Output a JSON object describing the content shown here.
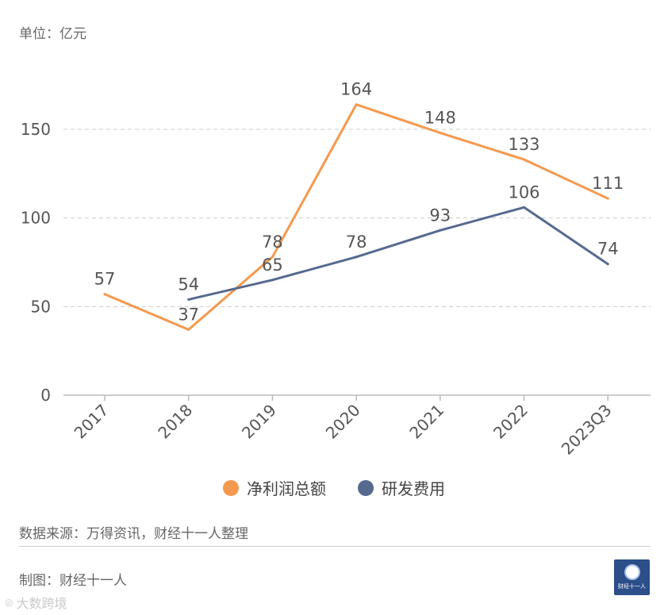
{
  "unit_label": "单位：亿元",
  "source": "数据来源：万得资讯，财经十一人整理",
  "maker": "制图：财经十一人",
  "logo_text": "财经十一人",
  "watermark": "大数跨境",
  "colors": {
    "series1": "#f4994e",
    "series2": "#566a8f",
    "grid": "#cccccc",
    "axis": "#bbbbbb"
  },
  "chart_data": {
    "type": "line",
    "title": "",
    "xlabel": "",
    "ylabel": "单位：亿元",
    "categories": [
      "2017",
      "2018",
      "2019",
      "2020",
      "2021",
      "2022",
      "2023Q3"
    ],
    "ylim": [
      0,
      150
    ],
    "yticks": [
      0,
      50,
      100,
      150
    ],
    "grid": true,
    "legend_position": "bottom",
    "series": [
      {
        "name": "净利润总额",
        "color": "#f4994e",
        "values": [
          57,
          37,
          78,
          164,
          148,
          133,
          111
        ]
      },
      {
        "name": "研发费用",
        "color": "#566a8f",
        "values": [
          null,
          54,
          65,
          78,
          93,
          106,
          74
        ]
      }
    ]
  }
}
